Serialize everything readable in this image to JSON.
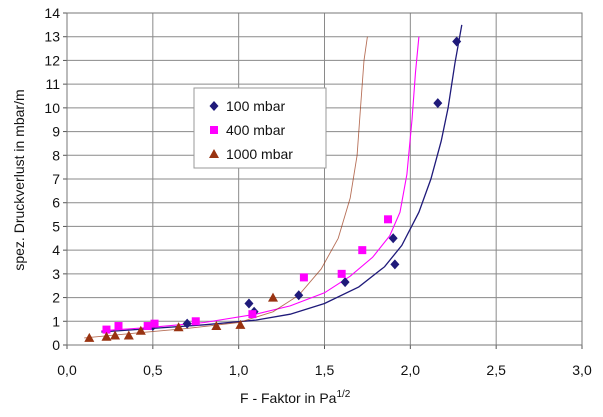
{
  "chart_data": {
    "type": "scatter",
    "title": "",
    "xlabel": "F - Faktor in Pa",
    "xlabel_sup": "1/2",
    "ylabel": "spez. Druckverlust in mbar/m",
    "xlim": [
      0,
      3
    ],
    "ylim": [
      0,
      14
    ],
    "x_ticks": [
      "0,0",
      "0,5",
      "1,0",
      "1,5",
      "2,0",
      "2,5",
      "3,0"
    ],
    "y_ticks": [
      "0",
      "1",
      "2",
      "3",
      "4",
      "5",
      "6",
      "7",
      "8",
      "9",
      "10",
      "11",
      "12",
      "13",
      "14"
    ],
    "grid": true,
    "legend": "upper-left-inside",
    "series": [
      {
        "name": "100 mbar",
        "marker": "diamond",
        "color": "#1f1a7a",
        "points": [
          [
            0.5,
            0.8
          ],
          [
            0.7,
            0.9
          ],
          [
            1.06,
            1.75
          ],
          [
            1.09,
            1.4
          ],
          [
            1.35,
            2.1
          ],
          [
            1.62,
            2.65
          ],
          [
            1.9,
            4.5
          ],
          [
            1.91,
            3.4
          ],
          [
            2.16,
            10.2
          ],
          [
            2.27,
            12.8
          ]
        ],
        "fit": [
          [
            0.2,
            0.55
          ],
          [
            0.5,
            0.7
          ],
          [
            0.8,
            0.85
          ],
          [
            1.1,
            1.05
          ],
          [
            1.3,
            1.3
          ],
          [
            1.5,
            1.75
          ],
          [
            1.7,
            2.45
          ],
          [
            1.85,
            3.3
          ],
          [
            1.95,
            4.2
          ],
          [
            2.05,
            5.6
          ],
          [
            2.12,
            7.0
          ],
          [
            2.18,
            8.6
          ],
          [
            2.22,
            10.0
          ],
          [
            2.26,
            11.9
          ],
          [
            2.3,
            13.5
          ]
        ]
      },
      {
        "name": "400 mbar",
        "marker": "square",
        "color": "#ff00ff",
        "points": [
          [
            0.23,
            0.65
          ],
          [
            0.3,
            0.8
          ],
          [
            0.47,
            0.8
          ],
          [
            0.51,
            0.9
          ],
          [
            0.75,
            1.0
          ],
          [
            1.08,
            1.3
          ],
          [
            1.38,
            2.85
          ],
          [
            1.6,
            3.0
          ],
          [
            1.72,
            4.0
          ],
          [
            1.87,
            5.3
          ]
        ],
        "fit": [
          [
            0.2,
            0.6
          ],
          [
            0.5,
            0.75
          ],
          [
            0.8,
            0.95
          ],
          [
            1.1,
            1.3
          ],
          [
            1.3,
            1.65
          ],
          [
            1.5,
            2.2
          ],
          [
            1.65,
            2.9
          ],
          [
            1.78,
            3.7
          ],
          [
            1.88,
            4.6
          ],
          [
            1.94,
            5.6
          ],
          [
            1.98,
            7.2
          ],
          [
            2.01,
            9.5
          ],
          [
            2.03,
            11.5
          ],
          [
            2.05,
            13.0
          ]
        ]
      },
      {
        "name": "1000 mbar",
        "marker": "triangle",
        "color": "#993311",
        "points": [
          [
            0.13,
            0.3
          ],
          [
            0.23,
            0.35
          ],
          [
            0.28,
            0.4
          ],
          [
            0.36,
            0.4
          ],
          [
            0.43,
            0.6
          ],
          [
            0.65,
            0.75
          ],
          [
            0.87,
            0.8
          ],
          [
            1.01,
            0.85
          ],
          [
            1.2,
            2.0
          ]
        ],
        "fit": [
          [
            0.1,
            0.3
          ],
          [
            0.4,
            0.5
          ],
          [
            0.7,
            0.7
          ],
          [
            1.0,
            0.95
          ],
          [
            1.2,
            1.4
          ],
          [
            1.35,
            2.1
          ],
          [
            1.48,
            3.2
          ],
          [
            1.58,
            4.5
          ],
          [
            1.65,
            6.2
          ],
          [
            1.69,
            8.0
          ],
          [
            1.71,
            10.0
          ],
          [
            1.73,
            12.0
          ],
          [
            1.75,
            13.0
          ]
        ]
      }
    ]
  }
}
